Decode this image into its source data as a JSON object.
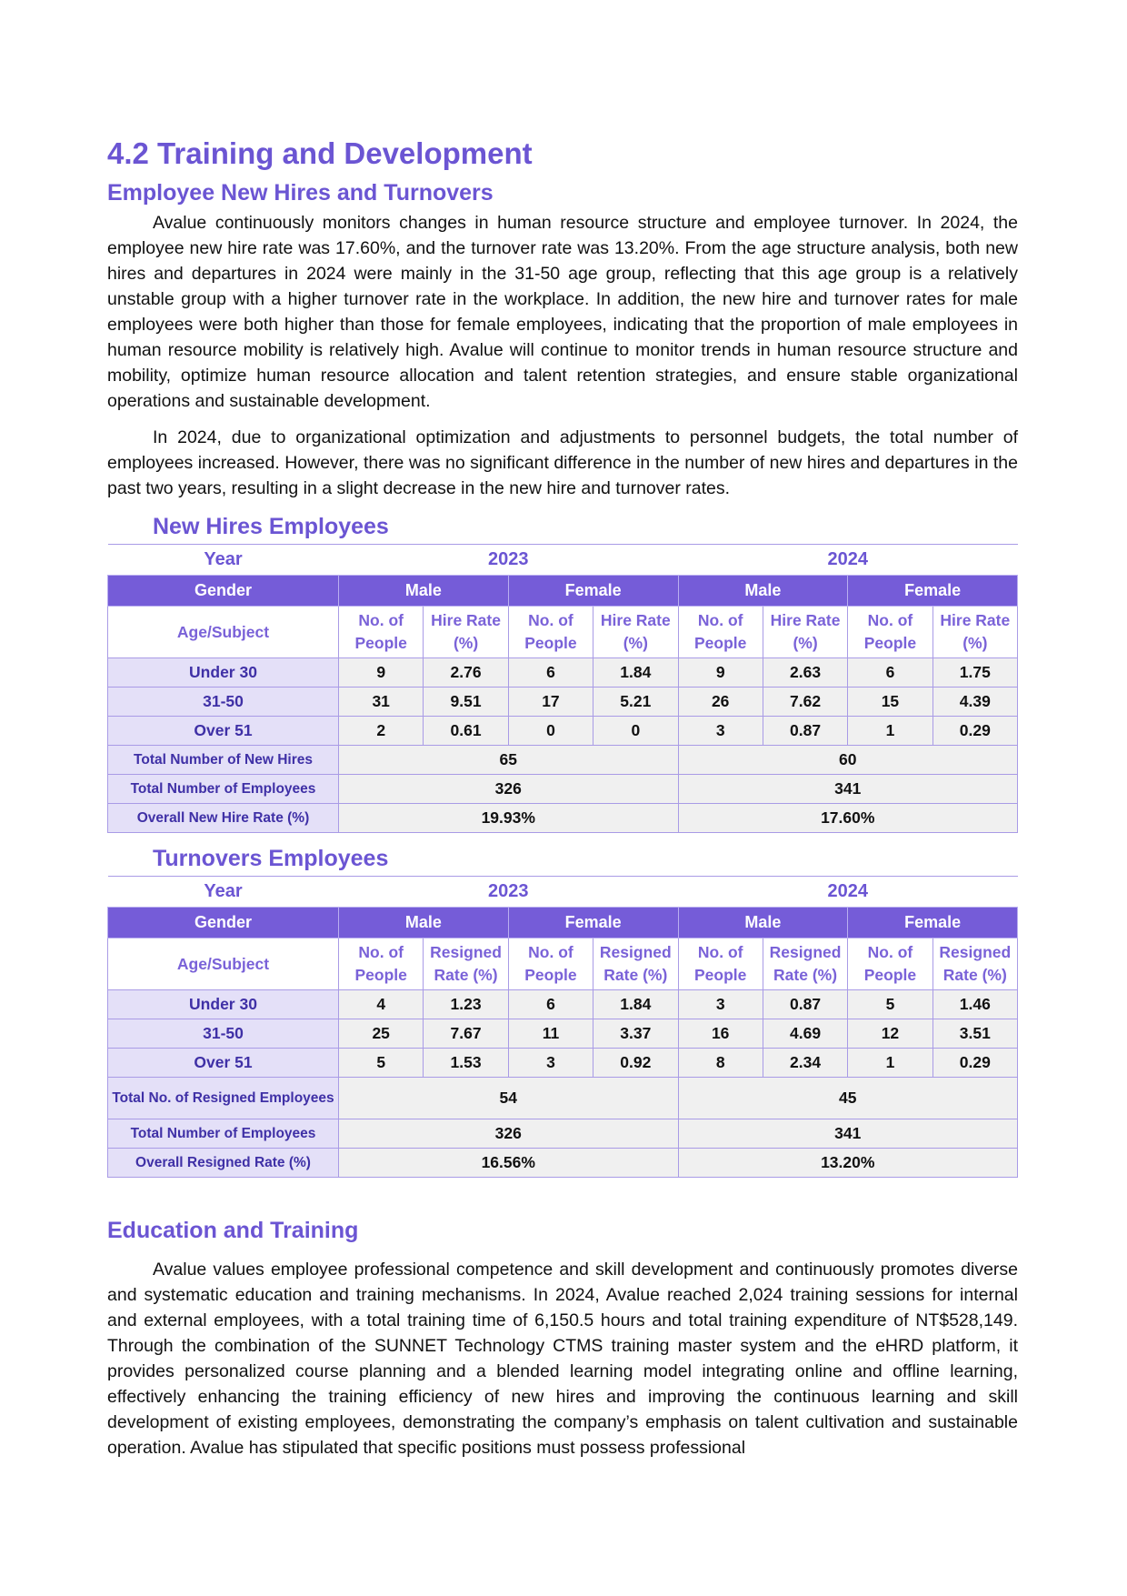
{
  "section_title": "4.2 Training and Development",
  "sub1": "Employee New Hires and Turnovers",
  "para1": "Avalue continuously monitors changes in human resource structure and employee turnover. In 2024, the employee new hire rate was 17.60%, and the turnover rate was 13.20%. From the age structure analysis, both new hires and departures in 2024 were mainly in the 31-50 age group, reflecting that this age group is a relatively unstable group with a higher turnover rate in the workplace. In addition, the new hire and turnover rates for male employees were both higher than those for female employees, indicating that the proportion of male employees in human resource mobility is relatively high. Avalue will continue to monitor trends in human resource structure and mobility, optimize human resource allocation and talent retention strategies, and ensure stable organizational operations and sustainable development.",
  "para2": "In 2024, due to organizational optimization and adjustments to personnel budgets, the total number of employees increased. However, there was no significant difference in the number of new hires and departures in the past two years, resulting in a slight decrease in the new hire and turnover rates.",
  "tables": [
    {
      "title": "New Hires Employees",
      "year_label": "Year",
      "years": [
        "2023",
        "2024"
      ],
      "gender_label": "Gender",
      "genders": [
        "Male",
        "Female",
        "Male",
        "Female"
      ],
      "age_label": "Age/Subject",
      "sub": [
        "No. of People",
        "Hire Rate (%)"
      ],
      "rows": [
        {
          "label": "Under 30",
          "values": [
            "9",
            "2.76",
            "6",
            "1.84",
            "9",
            "2.63",
            "6",
            "1.75"
          ]
        },
        {
          "label": "31-50",
          "values": [
            "31",
            "9.51",
            "17",
            "5.21",
            "26",
            "7.62",
            "15",
            "4.39"
          ]
        },
        {
          "label": "Over 51",
          "values": [
            "2",
            "0.61",
            "0",
            "0",
            "3",
            "0.87",
            "1",
            "0.29"
          ]
        }
      ],
      "totals": [
        {
          "label": "Total Number of New Hires",
          "values": [
            "65",
            "60"
          ]
        },
        {
          "label": "Total Number of Employees",
          "values": [
            "326",
            "341"
          ]
        },
        {
          "label": "Overall New Hire Rate (%)",
          "values": [
            "19.93%",
            "17.60%"
          ]
        }
      ]
    },
    {
      "title": "Turnovers Employees",
      "year_label": "Year",
      "years": [
        "2023",
        "2024"
      ],
      "gender_label": "Gender",
      "genders": [
        "Male",
        "Female",
        "Male",
        "Female"
      ],
      "age_label": "Age/Subject",
      "sub": [
        "No. of People",
        "Resigned Rate (%)"
      ],
      "rows": [
        {
          "label": "Under 30",
          "values": [
            "4",
            "1.23",
            "6",
            "1.84",
            "3",
            "0.87",
            "5",
            "1.46"
          ]
        },
        {
          "label": "31-50",
          "values": [
            "25",
            "7.67",
            "11",
            "3.37",
            "16",
            "4.69",
            "12",
            "3.51"
          ]
        },
        {
          "label": "Over 51",
          "values": [
            "5",
            "1.53",
            "3",
            "0.92",
            "8",
            "2.34",
            "1",
            "0.29"
          ]
        }
      ],
      "totals": [
        {
          "label": "Total No. of Resigned Employees",
          "values": [
            "54",
            "45"
          ]
        },
        {
          "label": "Total Number of Employees",
          "values": [
            "326",
            "341"
          ]
        },
        {
          "label": "Overall Resigned Rate (%)",
          "values": [
            "16.56%",
            "13.20%"
          ]
        }
      ]
    }
  ],
  "sub2": "Education and Training",
  "para3": "Avalue values employee professional competence and skill development and continuously promotes diverse and systematic education and training mechanisms. In 2024, Avalue reached 2,024 training sessions for internal and external employees, with a total training time of 6,150.5 hours and total training expenditure of NT$528,149. Through the combination of the SUNNET Technology CTMS training master system and the eHRD platform, it provides personalized course planning and a blended learning model integrating online and offline learning, effectively enhancing the training efficiency of new hires and improving the continuous learning and skill development of existing employees, demonstrating the company’s emphasis on talent cultivation and sustainable operation. Avalue has stipulated that specific positions must possess professional"
}
